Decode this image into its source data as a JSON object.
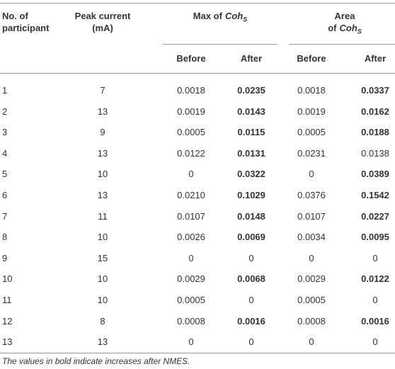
{
  "table": {
    "headers": {
      "participant": "No. of participant",
      "peak": "Peak current (mA)",
      "max": {
        "prefix": "Max of",
        "symbol": "Coh",
        "subscript": "S"
      },
      "area": {
        "prefix": "Area of",
        "symbol": "Coh",
        "subscript": "S"
      },
      "sub": [
        "Before",
        "After",
        "Before",
        "After"
      ]
    },
    "rows": [
      [
        "1",
        "7",
        "0.0018",
        "0.0235",
        "0.0018",
        "0.0337"
      ],
      [
        "2",
        "13",
        "0.0019",
        "0.0143",
        "0.0019",
        "0.0162"
      ],
      [
        "3",
        "9",
        "0.0005",
        "0.0115",
        "0.0005",
        "0.0188"
      ],
      [
        "4",
        "13",
        "0.0122",
        "0.0131",
        "0.0231",
        "0.0138"
      ],
      [
        "5",
        "10",
        "0",
        "0.0322",
        "0",
        "0.0389"
      ],
      [
        "6",
        "13",
        "0.0210",
        "0.1029",
        "0.0376",
        "0.1542"
      ],
      [
        "7",
        "11",
        "0.0107",
        "0.0148",
        "0.0107",
        "0.0227"
      ],
      [
        "8",
        "10",
        "0.0026",
        "0.0069",
        "0.0034",
        "0.0095"
      ],
      [
        "9",
        "15",
        "0",
        "0",
        "0",
        "0"
      ],
      [
        "10",
        "10",
        "0.0029",
        "0.0068",
        "0.0029",
        "0.0122"
      ],
      [
        "11",
        "10",
        "0.0005",
        "0",
        "0.0005",
        "0"
      ],
      [
        "12",
        "8",
        "0.0008",
        "0.0016",
        "0.0008",
        "0.0016"
      ],
      [
        "13",
        "13",
        "0",
        "0",
        "0",
        "0"
      ]
    ],
    "bold": [
      [
        false,
        false,
        false,
        true,
        false,
        true
      ],
      [
        false,
        false,
        false,
        true,
        false,
        true
      ],
      [
        false,
        false,
        false,
        true,
        false,
        true
      ],
      [
        false,
        false,
        false,
        true,
        false,
        false
      ],
      [
        false,
        false,
        false,
        true,
        false,
        true
      ],
      [
        false,
        false,
        false,
        true,
        false,
        true
      ],
      [
        false,
        false,
        false,
        true,
        false,
        true
      ],
      [
        false,
        false,
        false,
        true,
        false,
        true
      ],
      [
        false,
        false,
        false,
        false,
        false,
        false
      ],
      [
        false,
        false,
        false,
        true,
        false,
        true
      ],
      [
        false,
        false,
        false,
        false,
        false,
        false
      ],
      [
        false,
        false,
        false,
        true,
        false,
        true
      ],
      [
        false,
        false,
        false,
        false,
        false,
        false
      ]
    ],
    "footnote": "The values in bold indicate increases after NMES."
  }
}
